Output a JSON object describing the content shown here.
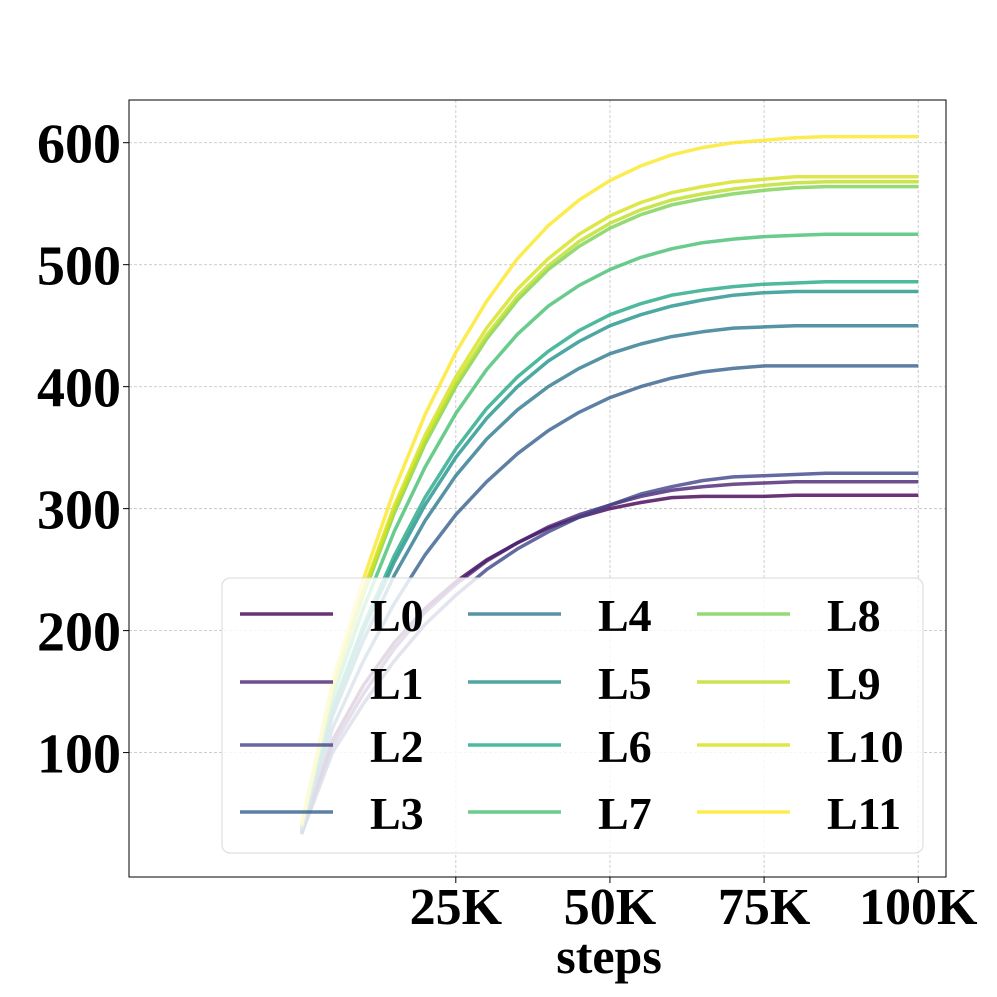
{
  "chart_data": {
    "type": "line",
    "title": "",
    "xlabel": "steps",
    "ylabel": "",
    "xlim": [
      -28000,
      104500
    ],
    "ylim": [
      -2,
      635
    ],
    "xticks": [
      25000,
      50000,
      75000,
      100000
    ],
    "xtick_labels": [
      "25K",
      "50K",
      "75K",
      "100K"
    ],
    "yticks": [
      100,
      200,
      300,
      400,
      500,
      600
    ],
    "ytick_labels": [
      "100",
      "200",
      "300",
      "400",
      "500",
      "600"
    ],
    "grid": true,
    "legend_position": "lower-right",
    "legend_columns": 3,
    "x": [
      0,
      2000,
      5000,
      10000,
      15000,
      20000,
      25000,
      30000,
      35000,
      40000,
      45000,
      50000,
      55000,
      60000,
      65000,
      70000,
      75000,
      80000,
      85000,
      90000,
      95000,
      100000
    ],
    "series": [
      {
        "name": "L0",
        "color": "#440154",
        "values": [
          35,
          65,
          110,
          155,
          190,
          218,
          240,
          258,
          272,
          284,
          293,
          300,
          305,
          309,
          310,
          310,
          310,
          311,
          311,
          311,
          311,
          311
        ]
      },
      {
        "name": "L1",
        "color": "#482374",
        "values": [
          33,
          63,
          105,
          148,
          185,
          215,
          238,
          257,
          272,
          285,
          295,
          303,
          310,
          315,
          318,
          320,
          321,
          322,
          322,
          322,
          322,
          322
        ]
      },
      {
        "name": "L2",
        "color": "#404387",
        "values": [
          34,
          60,
          100,
          140,
          175,
          205,
          229,
          250,
          267,
          281,
          293,
          303,
          312,
          318,
          323,
          326,
          327,
          328,
          329,
          329,
          329,
          329
        ]
      },
      {
        "name": "L3",
        "color": "#345f8d",
        "values": [
          36,
          70,
          120,
          175,
          222,
          262,
          295,
          322,
          345,
          364,
          379,
          391,
          400,
          407,
          412,
          415,
          417,
          417,
          417,
          417,
          417,
          417
        ]
      },
      {
        "name": "L4",
        "color": "#2a788e",
        "values": [
          37,
          75,
          130,
          192,
          245,
          290,
          327,
          357,
          381,
          400,
          415,
          427,
          435,
          441,
          445,
          448,
          449,
          450,
          450,
          450,
          450,
          450
        ]
      },
      {
        "name": "L5",
        "color": "#21918c",
        "values": [
          38,
          77,
          135,
          200,
          256,
          303,
          342,
          374,
          400,
          421,
          437,
          450,
          459,
          466,
          471,
          475,
          477,
          478,
          478,
          478,
          478,
          478
        ]
      },
      {
        "name": "L6",
        "color": "#22a884",
        "values": [
          38,
          78,
          137,
          204,
          261,
          309,
          349,
          382,
          408,
          429,
          446,
          459,
          468,
          475,
          479,
          482,
          484,
          485,
          486,
          486,
          486,
          486
        ]
      },
      {
        "name": "L7",
        "color": "#44bf70",
        "values": [
          39,
          82,
          145,
          218,
          281,
          334,
          378,
          414,
          443,
          466,
          483,
          496,
          506,
          513,
          518,
          521,
          523,
          524,
          525,
          525,
          525,
          525
        ]
      },
      {
        "name": "L8",
        "color": "#7ad151",
        "values": [
          40,
          85,
          152,
          229,
          296,
          353,
          400,
          439,
          471,
          496,
          515,
          530,
          541,
          549,
          554,
          558,
          561,
          563,
          564,
          564,
          564,
          564
        ]
      },
      {
        "name": "L9",
        "color": "#bddf26",
        "values": [
          40,
          85,
          153,
          231,
          299,
          356,
          403,
          442,
          474,
          499,
          519,
          534,
          545,
          553,
          558,
          562,
          565,
          567,
          568,
          568,
          568,
          568
        ]
      },
      {
        "name": "L10",
        "color": "#d5e21a",
        "values": [
          41,
          86,
          154,
          233,
          302,
          360,
          408,
          448,
          480,
          505,
          525,
          540,
          551,
          559,
          564,
          568,
          570,
          572,
          572,
          572,
          572,
          572
        ]
      },
      {
        "name": "L11",
        "color": "#fde725",
        "values": [
          42,
          88,
          159,
          242,
          315,
          377,
          428,
          470,
          505,
          532,
          553,
          569,
          581,
          590,
          596,
          600,
          602,
          604,
          605,
          605,
          605,
          605
        ]
      }
    ]
  }
}
